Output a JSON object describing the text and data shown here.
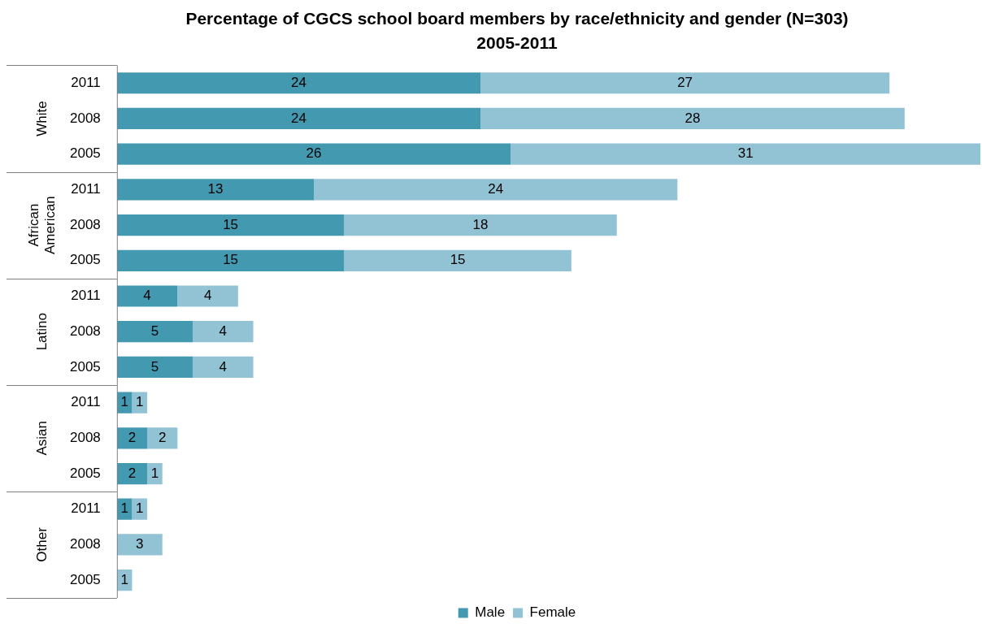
{
  "chart_data": {
    "type": "bar",
    "orientation": "horizontal",
    "stacked": true,
    "title": "Percentage of CGCS school board members by race/ethnicity and gender (N=303)",
    "subtitle": "2005-2011",
    "categories": [
      "2011",
      "2008",
      "2005",
      "2011",
      "2008",
      "2005",
      "2011",
      "2008",
      "2005",
      "2011",
      "2008",
      "2005",
      "2011",
      "2008",
      "2005"
    ],
    "annotations": [
      "White",
      "African American",
      "Latino",
      "Asian",
      "Other"
    ],
    "series": [
      {
        "name": "Male",
        "color": "#4399b0",
        "values": [
          24,
          24,
          26,
          13,
          15,
          15,
          4,
          5,
          5,
          1,
          2,
          2,
          1,
          null,
          null
        ]
      },
      {
        "name": "Female",
        "color": "#92c3d5",
        "values": [
          27,
          28,
          31,
          24,
          18,
          15,
          4,
          4,
          4,
          1,
          2,
          1,
          1,
          3,
          1
        ]
      }
    ],
    "xlim": [
      0,
      57
    ],
    "data_labels": true,
    "legend": "bottom"
  }
}
